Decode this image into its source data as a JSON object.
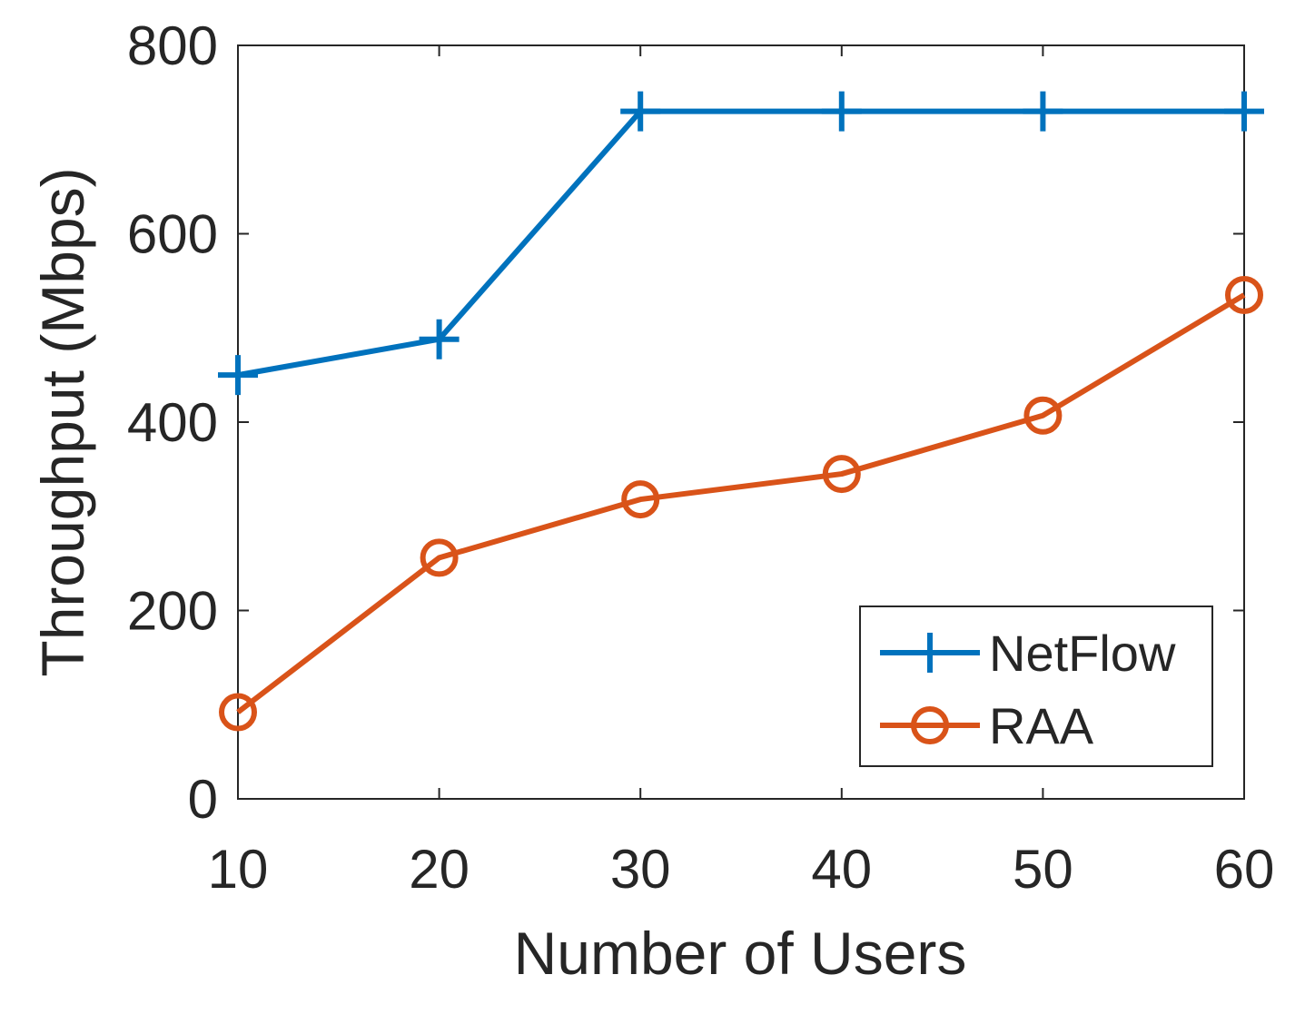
{
  "chart_data": {
    "type": "line",
    "title": "",
    "xlabel": "Number of Users",
    "ylabel": "Throughput (Mbps)",
    "x": [
      10,
      20,
      30,
      40,
      50,
      60
    ],
    "xlim": [
      10,
      60
    ],
    "ylim": [
      0,
      800
    ],
    "xticks": [
      10,
      20,
      30,
      40,
      50,
      60
    ],
    "yticks": [
      0,
      200,
      400,
      600,
      800
    ],
    "grid": false,
    "legend_position": "bottom-right",
    "series": [
      {
        "name": "NetFlow",
        "marker": "plus",
        "color": "#0072BD",
        "values": [
          450,
          488,
          730,
          730,
          730,
          730
        ]
      },
      {
        "name": "RAA",
        "marker": "circle",
        "color": "#D95319",
        "values": [
          92,
          256,
          318,
          345,
          407,
          535
        ]
      }
    ]
  }
}
